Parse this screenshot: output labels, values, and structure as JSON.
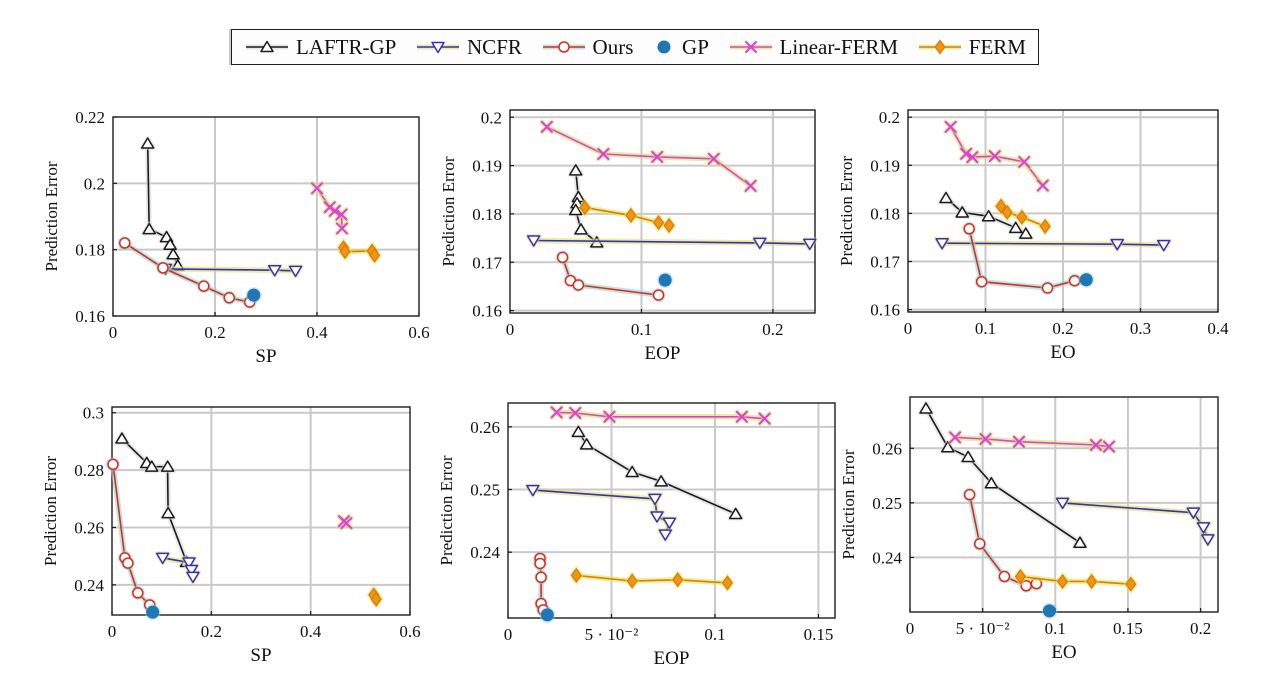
{
  "figure": {
    "background": "#ffffff",
    "text_color": "#111111",
    "grid_color": "#c9c9c9",
    "axis_color": "#1c1c1c",
    "legend": {
      "position": "top-center",
      "entries": [
        {
          "label": "LAFTR-GP",
          "series": "LAFTR-GP"
        },
        {
          "label": "NCFR",
          "series": "NCFR"
        },
        {
          "label": "Ours",
          "series": "Ours"
        },
        {
          "label": "GP",
          "series": "GP"
        },
        {
          "label": "Linear-FERM",
          "series": "Linear-FERM"
        },
        {
          "label": "FERM",
          "series": "FERM"
        }
      ]
    },
    "series_styles": {
      "LAFTR-GP": {
        "color": "#1a1a1a",
        "halo": "#d9d9d9",
        "marker": "triangle-up",
        "marker_fill": "#ffffff",
        "line": true
      },
      "NCFR": {
        "color": "#3030c4",
        "halo": "#e6df5e",
        "marker": "triangle-down",
        "marker_fill": "#ffffff",
        "line": true
      },
      "Ours": {
        "color": "#dd2a18",
        "halo": "#93d6da",
        "marker": "circle",
        "marker_fill": "#ffffff",
        "line": true
      },
      "GP": {
        "color": "#1f77b4",
        "halo": "#9cc9e8",
        "marker": "dot",
        "marker_fill": "#1f77b4",
        "line": false
      },
      "Linear-FERM": {
        "color": "#e13fd8",
        "halo": "#cde468",
        "marker": "x",
        "marker_fill": "none",
        "line": true
      },
      "FERM": {
        "color": "#d97e08",
        "halo": "#e6e45e",
        "marker": "diamond",
        "marker_fill": "#ef9416",
        "line": true
      }
    }
  },
  "chart_data": [
    {
      "id": "top-sp",
      "type": "line",
      "xlabel": "SP",
      "ylabel": "Prediction Error",
      "xlim": [
        0,
        0.6
      ],
      "ylim": [
        0.16,
        0.22
      ],
      "grid": true,
      "xticks": [
        {
          "v": 0,
          "t": "0"
        },
        {
          "v": 0.2,
          "t": "0.2"
        },
        {
          "v": 0.4,
          "t": "0.4"
        },
        {
          "v": 0.6,
          "t": "0.6"
        }
      ],
      "yticks": [
        {
          "v": 0.16,
          "t": "0.16"
        },
        {
          "v": 0.18,
          "t": "0.18"
        },
        {
          "v": 0.2,
          "t": "0.2"
        },
        {
          "v": 0.22,
          "t": "0.22"
        }
      ],
      "series": [
        {
          "name": "LAFTR-GP",
          "points": [
            [
              0.068,
              0.212
            ],
            [
              0.071,
              0.1862
            ],
            [
              0.105,
              0.1838
            ],
            [
              0.112,
              0.1815
            ],
            [
              0.118,
              0.1786
            ],
            [
              0.127,
              0.1752
            ]
          ]
        },
        {
          "name": "NCFR",
          "points": [
            [
              0.103,
              0.1742
            ],
            [
              0.317,
              0.1738
            ],
            [
              0.358,
              0.1736
            ]
          ]
        },
        {
          "name": "Ours",
          "points": [
            [
              0.023,
              0.182
            ],
            [
              0.098,
              0.1745
            ],
            [
              0.178,
              0.169
            ],
            [
              0.228,
              0.1655
            ],
            [
              0.268,
              0.1642
            ]
          ]
        },
        {
          "name": "GP",
          "points": [
            [
              0.276,
              0.1663
            ]
          ]
        },
        {
          "name": "Linear-FERM",
          "points": [
            [
              0.4,
              0.1985
            ],
            [
              0.425,
              0.1928
            ],
            [
              0.435,
              0.1917
            ],
            [
              0.448,
              0.1906
            ],
            [
              0.449,
              0.1864
            ]
          ]
        },
        {
          "name": "FERM",
          "points": [
            [
              0.452,
              0.1806
            ],
            [
              0.455,
              0.1794
            ],
            [
              0.508,
              0.1796
            ],
            [
              0.513,
              0.1783
            ]
          ]
        }
      ]
    },
    {
      "id": "top-eop",
      "type": "line",
      "xlabel": "EOP",
      "ylabel": "Prediction Error",
      "xlim": [
        0,
        0.232
      ],
      "ylim": [
        0.1595,
        0.2015
      ],
      "grid": true,
      "xticks": [
        {
          "v": 0,
          "t": "0"
        },
        {
          "v": 0.1,
          "t": "0.1"
        },
        {
          "v": 0.2,
          "t": "0.2"
        }
      ],
      "yticks": [
        {
          "v": 0.16,
          "t": "0.16"
        },
        {
          "v": 0.17,
          "t": "0.17"
        },
        {
          "v": 0.18,
          "t": "0.18"
        },
        {
          "v": 0.19,
          "t": "0.19"
        },
        {
          "v": 0.2,
          "t": "0.2"
        }
      ],
      "series": [
        {
          "name": "LAFTR-GP",
          "points": [
            [
              0.05,
              0.189
            ],
            [
              0.052,
              0.1835
            ],
            [
              0.051,
              0.1822
            ],
            [
              0.05,
              0.1808
            ],
            [
              0.054,
              0.1768
            ],
            [
              0.066,
              0.1741
            ]
          ]
        },
        {
          "name": "NCFR",
          "points": [
            [
              0.018,
              0.1745
            ],
            [
              0.19,
              0.174
            ],
            [
              0.228,
              0.1738
            ]
          ]
        },
        {
          "name": "Ours",
          "points": [
            [
              0.04,
              0.171
            ],
            [
              0.046,
              0.1662
            ],
            [
              0.052,
              0.1653
            ],
            [
              0.113,
              0.1632
            ]
          ]
        },
        {
          "name": "GP",
          "points": [
            [
              0.118,
              0.1663
            ]
          ]
        },
        {
          "name": "Linear-FERM",
          "points": [
            [
              0.028,
              0.198
            ],
            [
              0.071,
              0.1924
            ],
            [
              0.112,
              0.1918
            ],
            [
              0.155,
              0.1914
            ],
            [
              0.183,
              0.1858
            ]
          ]
        },
        {
          "name": "FERM",
          "points": [
            [
              0.057,
              0.1813
            ],
            [
              0.092,
              0.1797
            ],
            [
              0.113,
              0.1782
            ],
            [
              0.121,
              0.1776
            ]
          ]
        }
      ]
    },
    {
      "id": "top-eo",
      "type": "line",
      "xlabel": "EO",
      "ylabel": "Prediction Error",
      "xlim": [
        0,
        0.4
      ],
      "ylim": [
        0.1595,
        0.2015
      ],
      "grid": true,
      "xticks": [
        {
          "v": 0,
          "t": "0"
        },
        {
          "v": 0.1,
          "t": "0.1"
        },
        {
          "v": 0.2,
          "t": "0.2"
        },
        {
          "v": 0.3,
          "t": "0.3"
        },
        {
          "v": 0.4,
          "t": "0.4"
        }
      ],
      "yticks": [
        {
          "v": 0.16,
          "t": "0.16"
        },
        {
          "v": 0.17,
          "t": "0.17"
        },
        {
          "v": 0.18,
          "t": "0.18"
        },
        {
          "v": 0.19,
          "t": "0.19"
        },
        {
          "v": 0.2,
          "t": "0.2"
        }
      ],
      "series": [
        {
          "name": "LAFTR-GP",
          "points": [
            [
              0.049,
              0.1832
            ],
            [
              0.07,
              0.1802
            ],
            [
              0.104,
              0.1794
            ],
            [
              0.139,
              0.177
            ],
            [
              0.152,
              0.1758
            ]
          ]
        },
        {
          "name": "NCFR",
          "points": [
            [
              0.044,
              0.1738
            ],
            [
              0.27,
              0.1736
            ],
            [
              0.33,
              0.1734
            ]
          ]
        },
        {
          "name": "Ours",
          "points": [
            [
              0.079,
              0.1768
            ],
            [
              0.095,
              0.1658
            ],
            [
              0.18,
              0.1645
            ],
            [
              0.215,
              0.166
            ]
          ]
        },
        {
          "name": "GP",
          "points": [
            [
              0.23,
              0.1662
            ]
          ]
        },
        {
          "name": "Linear-FERM",
          "points": [
            [
              0.055,
              0.198
            ],
            [
              0.075,
              0.1924
            ],
            [
              0.083,
              0.1917
            ],
            [
              0.112,
              0.1919
            ],
            [
              0.15,
              0.1907
            ],
            [
              0.174,
              0.1858
            ]
          ]
        },
        {
          "name": "FERM",
          "points": [
            [
              0.12,
              0.1815
            ],
            [
              0.128,
              0.1802
            ],
            [
              0.147,
              0.1792
            ],
            [
              0.177,
              0.1773
            ]
          ]
        }
      ]
    },
    {
      "id": "bottom-sp",
      "type": "line",
      "xlabel": "SP",
      "ylabel": "Prediction Error",
      "xlim": [
        0,
        0.6
      ],
      "ylim": [
        0.2295,
        0.302
      ],
      "grid": true,
      "xticks": [
        {
          "v": 0,
          "t": "0"
        },
        {
          "v": 0.2,
          "t": "0.2"
        },
        {
          "v": 0.4,
          "t": "0.4"
        },
        {
          "v": 0.6,
          "t": "0.6"
        }
      ],
      "yticks": [
        {
          "v": 0.24,
          "t": "0.24"
        },
        {
          "v": 0.26,
          "t": "0.26"
        },
        {
          "v": 0.28,
          "t": "0.28"
        },
        {
          "v": 0.3,
          "t": "0.3"
        }
      ],
      "series": [
        {
          "name": "LAFTR-GP",
          "points": [
            [
              0.02,
              0.291
            ],
            [
              0.07,
              0.2825
            ],
            [
              0.08,
              0.2812
            ],
            [
              0.112,
              0.2812
            ],
            [
              0.113,
              0.265
            ],
            [
              0.15,
              0.248
            ]
          ]
        },
        {
          "name": "NCFR",
          "points": [
            [
              0.102,
              0.2494
            ],
            [
              0.155,
              0.2478
            ],
            [
              0.16,
              0.2452
            ],
            [
              0.163,
              0.2428
            ]
          ]
        },
        {
          "name": "Ours",
          "points": [
            [
              0.002,
              0.282
            ],
            [
              0.026,
              0.2494
            ],
            [
              0.032,
              0.2476
            ],
            [
              0.052,
              0.2372
            ],
            [
              0.076,
              0.233
            ]
          ]
        },
        {
          "name": "GP",
          "points": [
            [
              0.082,
              0.2305
            ]
          ]
        },
        {
          "name": "Linear-FERM",
          "points": [
            [
              0.467,
              0.2622
            ],
            [
              0.472,
              0.2615
            ]
          ]
        },
        {
          "name": "FERM",
          "points": [
            [
              0.527,
              0.2365
            ],
            [
              0.532,
              0.235
            ]
          ]
        }
      ]
    },
    {
      "id": "bottom-eop",
      "type": "line",
      "xlabel": "EOP",
      "ylabel": "Prediction Error",
      "xlim": [
        0,
        0.158
      ],
      "ylim": [
        0.2295,
        0.2638
      ],
      "grid": true,
      "xticks": [
        {
          "v": 0,
          "t": "0"
        },
        {
          "v": 0.05,
          "t": "5 · 10⁻²"
        },
        {
          "v": 0.1,
          "t": "0.1"
        },
        {
          "v": 0.15,
          "t": "0.15"
        }
      ],
      "yticks": [
        {
          "v": 0.24,
          "t": "0.24"
        },
        {
          "v": 0.25,
          "t": "0.25"
        },
        {
          "v": 0.26,
          "t": "0.26"
        }
      ],
      "series": [
        {
          "name": "LAFTR-GP",
          "points": [
            [
              0.034,
              0.2592
            ],
            [
              0.038,
              0.2572
            ],
            [
              0.06,
              0.2528
            ],
            [
              0.074,
              0.2513
            ],
            [
              0.11,
              0.2461
            ]
          ]
        },
        {
          "name": "NCFR",
          "points": [
            [
              0.012,
              0.2499
            ],
            [
              0.071,
              0.2485
            ],
            [
              0.072,
              0.2457
            ],
            [
              0.078,
              0.2447
            ],
            [
              0.076,
              0.2428
            ]
          ]
        },
        {
          "name": "Ours",
          "points": [
            [
              0.0155,
              0.239
            ],
            [
              0.0155,
              0.2382
            ],
            [
              0.016,
              0.236
            ],
            [
              0.016,
              0.2318
            ],
            [
              0.017,
              0.2308
            ]
          ]
        },
        {
          "name": "GP",
          "points": [
            [
              0.019,
              0.23
            ]
          ]
        },
        {
          "name": "Linear-FERM",
          "points": [
            [
              0.0235,
              0.2623
            ],
            [
              0.0325,
              0.2622
            ],
            [
              0.049,
              0.2616
            ],
            [
              0.113,
              0.2616
            ],
            [
              0.124,
              0.2613
            ]
          ]
        },
        {
          "name": "FERM",
          "points": [
            [
              0.033,
              0.2363
            ],
            [
              0.06,
              0.2354
            ],
            [
              0.082,
              0.2356
            ],
            [
              0.106,
              0.2351
            ]
          ]
        }
      ]
    },
    {
      "id": "bottom-eo",
      "type": "line",
      "xlabel": "EO",
      "ylabel": "Prediction Error",
      "xlim": [
        0,
        0.212
      ],
      "ylim": [
        0.23,
        0.2694
      ],
      "grid": true,
      "xticks": [
        {
          "v": 0,
          "t": "0"
        },
        {
          "v": 0.05,
          "t": "5 · 10⁻²"
        },
        {
          "v": 0.1,
          "t": "0.1"
        },
        {
          "v": 0.15,
          "t": "0.15"
        },
        {
          "v": 0.2,
          "t": "0.2"
        }
      ],
      "yticks": [
        {
          "v": 0.24,
          "t": "0.24"
        },
        {
          "v": 0.25,
          "t": "0.25"
        },
        {
          "v": 0.26,
          "t": "0.26"
        }
      ],
      "series": [
        {
          "name": "LAFTR-GP",
          "points": [
            [
              0.011,
              0.2673
            ],
            [
              0.026,
              0.2602
            ],
            [
              0.04,
              0.2584
            ],
            [
              0.056,
              0.2536
            ],
            [
              0.117,
              0.2427
            ]
          ]
        },
        {
          "name": "NCFR",
          "points": [
            [
              0.105,
              0.25
            ],
            [
              0.195,
              0.2482
            ],
            [
              0.202,
              0.2455
            ],
            [
              0.205,
              0.2433
            ]
          ]
        },
        {
          "name": "Ours",
          "points": [
            [
              0.041,
              0.2515
            ],
            [
              0.048,
              0.2425
            ],
            [
              0.065,
              0.2365
            ],
            [
              0.08,
              0.2348
            ],
            [
              0.087,
              0.2352
            ]
          ]
        },
        {
          "name": "GP",
          "points": [
            [
              0.096,
              0.2302
            ]
          ]
        },
        {
          "name": "Linear-FERM",
          "points": [
            [
              0.031,
              0.262
            ],
            [
              0.052,
              0.2617
            ],
            [
              0.075,
              0.2612
            ],
            [
              0.128,
              0.2606
            ],
            [
              0.137,
              0.2603
            ]
          ]
        },
        {
          "name": "FERM",
          "points": [
            [
              0.076,
              0.2365
            ],
            [
              0.105,
              0.2356
            ],
            [
              0.125,
              0.2356
            ],
            [
              0.152,
              0.2351
            ]
          ]
        }
      ]
    }
  ]
}
